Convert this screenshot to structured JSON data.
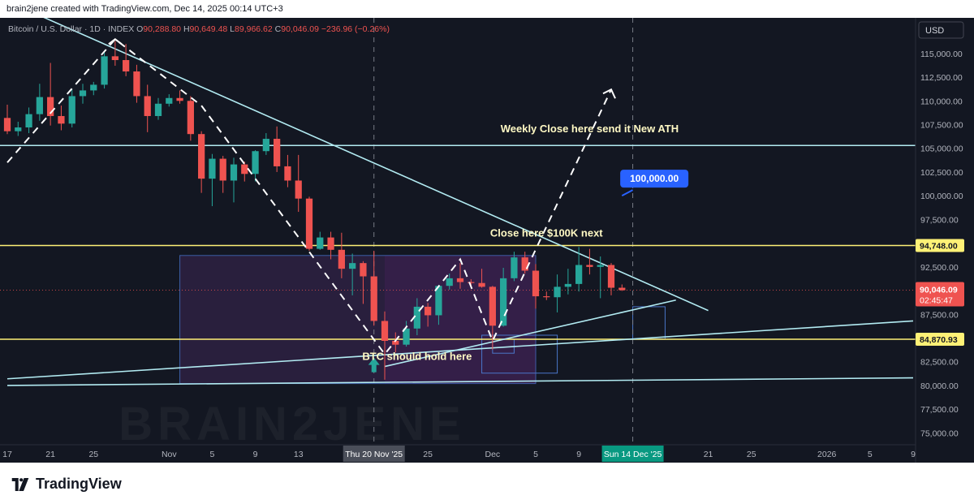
{
  "header": {
    "created_text": "brain2jene created with TradingView.com, Dec 14, 2025 00:14 UTC+3"
  },
  "footer": {
    "logo_text": "TradingView",
    "logo_icon": "tradingview-logo-icon"
  },
  "colors": {
    "background": "#131722",
    "up": "#26a69a",
    "down": "#ef5350",
    "trendline": "#b2ebf2",
    "level_yellow": "#fff176",
    "axis_text": "#b2b5be",
    "label_blue": "#2962ff"
  },
  "chart_data": {
    "type": "candlestick",
    "symbol_line": {
      "symbol": "Bitcoin / U.S. Dollar · 1D · INDEX",
      "open_label": "O",
      "open": "90,288.80",
      "high_label": "H",
      "high": "90,649.48",
      "low_label": "L",
      "low": "89,966.62",
      "close_label": "C",
      "close": "90,046.09",
      "change": "−236.96 (−0.26%)"
    },
    "currency_button": "USD",
    "y_axis": {
      "ylim": [
        73750,
        118750
      ],
      "tick_values": [
        75000,
        77500,
        80000,
        82500,
        85000,
        87500,
        90000,
        92500,
        95000,
        97500,
        100000,
        102500,
        105000,
        107500,
        110000,
        112500,
        115000
      ],
      "tick_labels": [
        "75,000.00",
        "77,500.00",
        "80,000.00",
        "82,500.00",
        "85,000.00",
        "87,500.00",
        "90,000.00",
        "92,500.00",
        "95,000.00",
        "97,500.00",
        "100,000.00",
        "102,500.00",
        "105,000.00",
        "107,500.00",
        "110,000.00",
        "112,500.00",
        "115,000.00"
      ]
    },
    "x_axis": {
      "start_date": "2025-10-17",
      "end_date": "2026-01-09",
      "ticks": [
        {
          "date": "2025-10-17",
          "label": "17"
        },
        {
          "date": "2025-10-21",
          "label": "21"
        },
        {
          "date": "2025-10-25",
          "label": "25"
        },
        {
          "date": "2025-11-01",
          "label": "Nov"
        },
        {
          "date": "2025-11-05",
          "label": "5"
        },
        {
          "date": "2025-11-09",
          "label": "9"
        },
        {
          "date": "2025-11-13",
          "label": "13"
        },
        {
          "date": "2025-11-25",
          "label": "25"
        },
        {
          "date": "2025-12-01",
          "label": "Dec"
        },
        {
          "date": "2025-12-05",
          "label": "5"
        },
        {
          "date": "2025-12-09",
          "label": "9"
        },
        {
          "date": "2025-12-21",
          "label": "21"
        },
        {
          "date": "2025-12-25",
          "label": "25"
        },
        {
          "date": "2026-01-01",
          "label": "2026"
        },
        {
          "date": "2026-01-05",
          "label": "5"
        },
        {
          "date": "2026-01-09",
          "label": "9"
        }
      ],
      "highlight_labels": [
        {
          "date": "2025-11-20",
          "label": "Thu 20 Nov '25"
        },
        {
          "date": "2025-12-14",
          "label": "Sun 14 Dec '25"
        }
      ]
    },
    "price_labels": [
      {
        "value": 94748,
        "label": "94,748.00",
        "style": "yellow"
      },
      {
        "value": 84870.93,
        "label": "84,870.93",
        "style": "yellow"
      },
      {
        "value": 90046.09,
        "label": "90,046.09",
        "sublabel": "02:45:47",
        "style": "red"
      }
    ],
    "candles": [
      {
        "date": "2025-10-17",
        "o": 108200,
        "h": 109600,
        "l": 106500,
        "c": 106800
      },
      {
        "date": "2025-10-18",
        "o": 106800,
        "h": 107800,
        "l": 106300,
        "c": 107200
      },
      {
        "date": "2025-10-19",
        "o": 107200,
        "h": 109300,
        "l": 106600,
        "c": 108600
      },
      {
        "date": "2025-10-20",
        "o": 108600,
        "h": 111800,
        "l": 107900,
        "c": 110400
      },
      {
        "date": "2025-10-21",
        "o": 110400,
        "h": 114000,
        "l": 107400,
        "c": 108400
      },
      {
        "date": "2025-10-22",
        "o": 108400,
        "h": 109500,
        "l": 106900,
        "c": 107600
      },
      {
        "date": "2025-10-23",
        "o": 107600,
        "h": 111200,
        "l": 107200,
        "c": 110500
      },
      {
        "date": "2025-10-24",
        "o": 110500,
        "h": 111800,
        "l": 109700,
        "c": 111100
      },
      {
        "date": "2025-10-25",
        "o": 111100,
        "h": 112000,
        "l": 110600,
        "c": 111700
      },
      {
        "date": "2025-10-26",
        "o": 111700,
        "h": 115300,
        "l": 111300,
        "c": 114700
      },
      {
        "date": "2025-10-27",
        "o": 114700,
        "h": 116300,
        "l": 113700,
        "c": 114300
      },
      {
        "date": "2025-10-28",
        "o": 114300,
        "h": 116000,
        "l": 112600,
        "c": 113100
      },
      {
        "date": "2025-10-29",
        "o": 113100,
        "h": 113800,
        "l": 109800,
        "c": 110500
      },
      {
        "date": "2025-10-30",
        "o": 110500,
        "h": 111700,
        "l": 106700,
        "c": 108400
      },
      {
        "date": "2025-10-31",
        "o": 108400,
        "h": 110300,
        "l": 108000,
        "c": 109700
      },
      {
        "date": "2025-11-01",
        "o": 109700,
        "h": 110700,
        "l": 109400,
        "c": 110300
      },
      {
        "date": "2025-11-02",
        "o": 110300,
        "h": 111100,
        "l": 109700,
        "c": 110000
      },
      {
        "date": "2025-11-03",
        "o": 110000,
        "h": 110500,
        "l": 105800,
        "c": 106500
      },
      {
        "date": "2025-11-04",
        "o": 106500,
        "h": 106800,
        "l": 100300,
        "c": 101800
      },
      {
        "date": "2025-11-05",
        "o": 101800,
        "h": 104400,
        "l": 98900,
        "c": 103900
      },
      {
        "date": "2025-11-06",
        "o": 103900,
        "h": 104200,
        "l": 100300,
        "c": 101600
      },
      {
        "date": "2025-11-07",
        "o": 101600,
        "h": 104000,
        "l": 99300,
        "c": 103300
      },
      {
        "date": "2025-11-08",
        "o": 103300,
        "h": 103600,
        "l": 101500,
        "c": 102300
      },
      {
        "date": "2025-11-09",
        "o": 102300,
        "h": 104800,
        "l": 101500,
        "c": 104700
      },
      {
        "date": "2025-11-10",
        "o": 104700,
        "h": 106600,
        "l": 104300,
        "c": 106000
      },
      {
        "date": "2025-11-11",
        "o": 106000,
        "h": 107300,
        "l": 102500,
        "c": 103100
      },
      {
        "date": "2025-11-12",
        "o": 103100,
        "h": 104300,
        "l": 100900,
        "c": 101600
      },
      {
        "date": "2025-11-13",
        "o": 101600,
        "h": 104300,
        "l": 98300,
        "c": 99700
      },
      {
        "date": "2025-11-14",
        "o": 99700,
        "h": 99900,
        "l": 94200,
        "c": 94400
      },
      {
        "date": "2025-11-15",
        "o": 94400,
        "h": 96200,
        "l": 94300,
        "c": 95600
      },
      {
        "date": "2025-11-16",
        "o": 95600,
        "h": 96200,
        "l": 93300,
        "c": 94300
      },
      {
        "date": "2025-11-17",
        "o": 94300,
        "h": 96100,
        "l": 91300,
        "c": 92300
      },
      {
        "date": "2025-11-18",
        "o": 92300,
        "h": 93900,
        "l": 89500,
        "c": 92900
      },
      {
        "date": "2025-11-19",
        "o": 92900,
        "h": 93100,
        "l": 88600,
        "c": 91500
      },
      {
        "date": "2025-11-20",
        "o": 91500,
        "h": 94200,
        "l": 86300,
        "c": 86800
      },
      {
        "date": "2025-11-21",
        "o": 86800,
        "h": 87800,
        "l": 80600,
        "c": 84700
      },
      {
        "date": "2025-11-22",
        "o": 84700,
        "h": 85600,
        "l": 83500,
        "c": 84300
      },
      {
        "date": "2025-11-23",
        "o": 84300,
        "h": 86800,
        "l": 84100,
        "c": 86000
      },
      {
        "date": "2025-11-24",
        "o": 86000,
        "h": 89200,
        "l": 85300,
        "c": 88300
      },
      {
        "date": "2025-11-25",
        "o": 88300,
        "h": 88700,
        "l": 86200,
        "c": 87400
      },
      {
        "date": "2025-11-26",
        "o": 87400,
        "h": 90600,
        "l": 86400,
        "c": 90500
      },
      {
        "date": "2025-11-27",
        "o": 90500,
        "h": 91800,
        "l": 90100,
        "c": 91300
      },
      {
        "date": "2025-11-28",
        "o": 91300,
        "h": 92900,
        "l": 90200,
        "c": 90900
      },
      {
        "date": "2025-11-29",
        "o": 90900,
        "h": 91200,
        "l": 90300,
        "c": 90800
      },
      {
        "date": "2025-11-30",
        "o": 90800,
        "h": 92300,
        "l": 90300,
        "c": 90400
      },
      {
        "date": "2025-12-01",
        "o": 90400,
        "h": 90500,
        "l": 83800,
        "c": 86300
      },
      {
        "date": "2025-12-02",
        "o": 86300,
        "h": 92400,
        "l": 86200,
        "c": 91300
      },
      {
        "date": "2025-12-03",
        "o": 91300,
        "h": 94100,
        "l": 91000,
        "c": 93500
      },
      {
        "date": "2025-12-04",
        "o": 93500,
        "h": 94100,
        "l": 91800,
        "c": 92100
      },
      {
        "date": "2025-12-05",
        "o": 92100,
        "h": 92800,
        "l": 88100,
        "c": 89400
      },
      {
        "date": "2025-12-06",
        "o": 89400,
        "h": 89900,
        "l": 89000,
        "c": 89300
      },
      {
        "date": "2025-12-07",
        "o": 89300,
        "h": 91700,
        "l": 87700,
        "c": 90400
      },
      {
        "date": "2025-12-08",
        "o": 90400,
        "h": 92300,
        "l": 89600,
        "c": 90700
      },
      {
        "date": "2025-12-09",
        "o": 90700,
        "h": 94600,
        "l": 89900,
        "c": 92700
      },
      {
        "date": "2025-12-10",
        "o": 92700,
        "h": 94400,
        "l": 91700,
        "c": 92500
      },
      {
        "date": "2025-12-11",
        "o": 92500,
        "h": 93600,
        "l": 89200,
        "c": 92700
      },
      {
        "date": "2025-12-12",
        "o": 92700,
        "h": 92900,
        "l": 89500,
        "c": 90300
      },
      {
        "date": "2025-12-13",
        "o": 90300,
        "h": 90649.48,
        "l": 89966.62,
        "c": 90046.09
      }
    ],
    "horizontal_levels": [
      {
        "value": 105300,
        "color": "trendline"
      },
      {
        "value": 94748,
        "color": "yellow"
      },
      {
        "value": 84870.93,
        "color": "yellow"
      }
    ],
    "trendlines": [
      {
        "from": {
          "date": "2025-10-17",
          "value": 120500
        },
        "to": {
          "date": "2025-12-21",
          "value": 87900
        }
      },
      {
        "from": {
          "date": "2025-10-17",
          "value": 80700
        },
        "to": {
          "date": "2025-12-14",
          "value": 84900
        }
      },
      {
        "from": {
          "date": "2025-11-21",
          "value": 82000
        },
        "to": {
          "date": "2025-12-18",
          "value": 89000
        }
      },
      {
        "from": {
          "date": "2025-12-14",
          "value": 84900
        },
        "to": {
          "date": "2026-01-09",
          "value": 86800
        }
      },
      {
        "from": {
          "date": "2025-10-17",
          "value": 80000
        },
        "to": {
          "date": "2026-01-09",
          "value": 80800
        }
      }
    ],
    "projection_path": [
      {
        "date": "2025-10-17",
        "value": 103500
      },
      {
        "date": "2025-10-27",
        "value": 116500
      },
      {
        "date": "2025-11-04",
        "value": 109500
      },
      {
        "date": "2025-11-21",
        "value": 83300
      },
      {
        "date": "2025-11-28",
        "value": 93300
      },
      {
        "date": "2025-12-01",
        "value": 84700
      },
      {
        "date": "2025-12-12",
        "value": 111200
      }
    ],
    "projection_arrowhead": {
      "date": "2025-12-12",
      "value": 111200
    },
    "boxes": [
      {
        "from_date": "2025-11-02",
        "to_date": "2025-12-05",
        "top": 93700,
        "bottom": 80200,
        "style": "purple-fill"
      },
      {
        "from_date": "2025-11-21",
        "to_date": "2025-12-05",
        "top": 93700,
        "bottom": 80200,
        "style": "purple-fill-dark"
      },
      {
        "from_date": "2025-11-30",
        "to_date": "2025-12-07",
        "top": 85300,
        "bottom": 81300,
        "style": "blue-outline"
      },
      {
        "from_date": "2025-12-01",
        "to_date": "2025-12-03",
        "top": 84900,
        "bottom": 83400,
        "style": "blue-outline"
      },
      {
        "from_date": "2025-12-14",
        "to_date": "2025-12-17",
        "top": 88300,
        "bottom": 84900,
        "style": "blue-outline"
      }
    ],
    "vertical_markers": [
      {
        "date": "2025-11-20"
      },
      {
        "date": "2025-12-14"
      }
    ],
    "up_arrow": {
      "date": "2025-11-20",
      "value": 82000
    },
    "annotations": [
      {
        "text": "Weekly Close here send it New ATH",
        "date": "2025-12-10",
        "value": 106700
      },
      {
        "text": "Close here $100K next",
        "date": "2025-12-06",
        "value": 95700
      },
      {
        "text": "BTC should hold here",
        "date": "2025-11-24",
        "value": 82700
      }
    ],
    "price_callout": {
      "label": "100,000.00",
      "date": "2025-12-16",
      "value": 101800
    },
    "callout_pointer": {
      "from": {
        "date": "2025-12-14",
        "value": 100600
      },
      "to": {
        "date": "2025-12-13",
        "value": 100000
      }
    },
    "watermark": "BRAIN2JENE"
  }
}
